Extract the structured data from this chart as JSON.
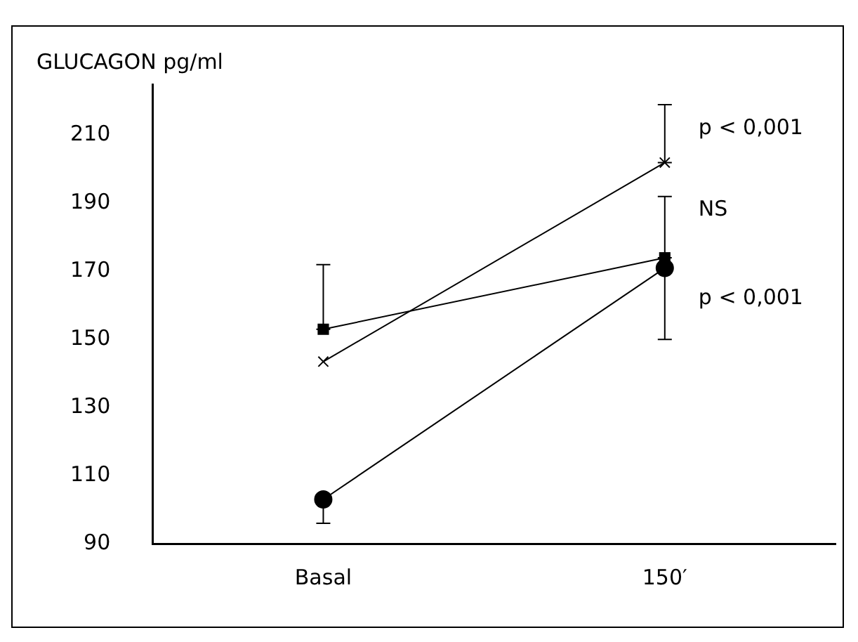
{
  "chart_data": {
    "type": "line",
    "ylabel": "GLUCAGON pg/ml",
    "categories": [
      "Basal",
      "150′"
    ],
    "ylim": [
      90,
      225
    ],
    "yticks": [
      90,
      110,
      130,
      150,
      170,
      190,
      210
    ],
    "grid": false,
    "legend": false,
    "line_style": "solid",
    "series": [
      {
        "color": "#000000",
        "marker": "square",
        "values": [
          153,
          174
        ],
        "errors": [
          [
            153,
            172
          ],
          [
            174,
            192
          ]
        ]
      },
      {
        "color": "#000000",
        "marker": "cross",
        "values": [
          143.5,
          202
        ],
        "errors": [
          null,
          [
            202,
            219
          ]
        ]
      },
      {
        "color": "#000000",
        "marker": "circle",
        "values": [
          103,
          171
        ],
        "errors": [
          [
            96,
            103
          ],
          [
            150,
            171
          ]
        ]
      }
    ],
    "annotations": [
      {
        "text": "p < 0,001",
        "x": "150′",
        "y": 212
      },
      {
        "text": "NS",
        "x": "150′",
        "y": 188
      },
      {
        "text": "p < 0,001",
        "x": "150′",
        "y": 162
      }
    ]
  }
}
